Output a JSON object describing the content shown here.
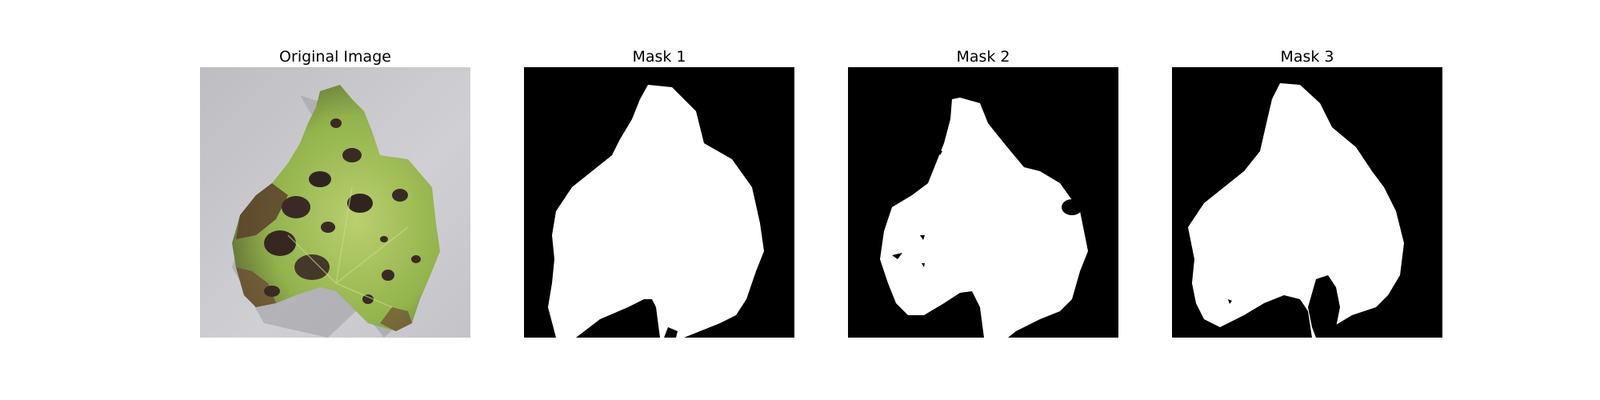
{
  "figure": {
    "panels": [
      {
        "title": "Original Image",
        "kind": "photo"
      },
      {
        "title": "Mask 1",
        "kind": "mask"
      },
      {
        "title": "Mask 2",
        "kind": "mask"
      },
      {
        "title": "Mask 3",
        "kind": "mask"
      }
    ]
  },
  "colors": {
    "background": "#ffffff",
    "mask_foreground": "#ffffff",
    "mask_background": "#000000",
    "photo_surface": "#c8c8cc",
    "leaf_green": "#8fb04a",
    "leaf_light_green": "#b6cf6d",
    "lesion_dark": "#3a2a25",
    "leaf_edge_brown": "#7a5a3a"
  }
}
